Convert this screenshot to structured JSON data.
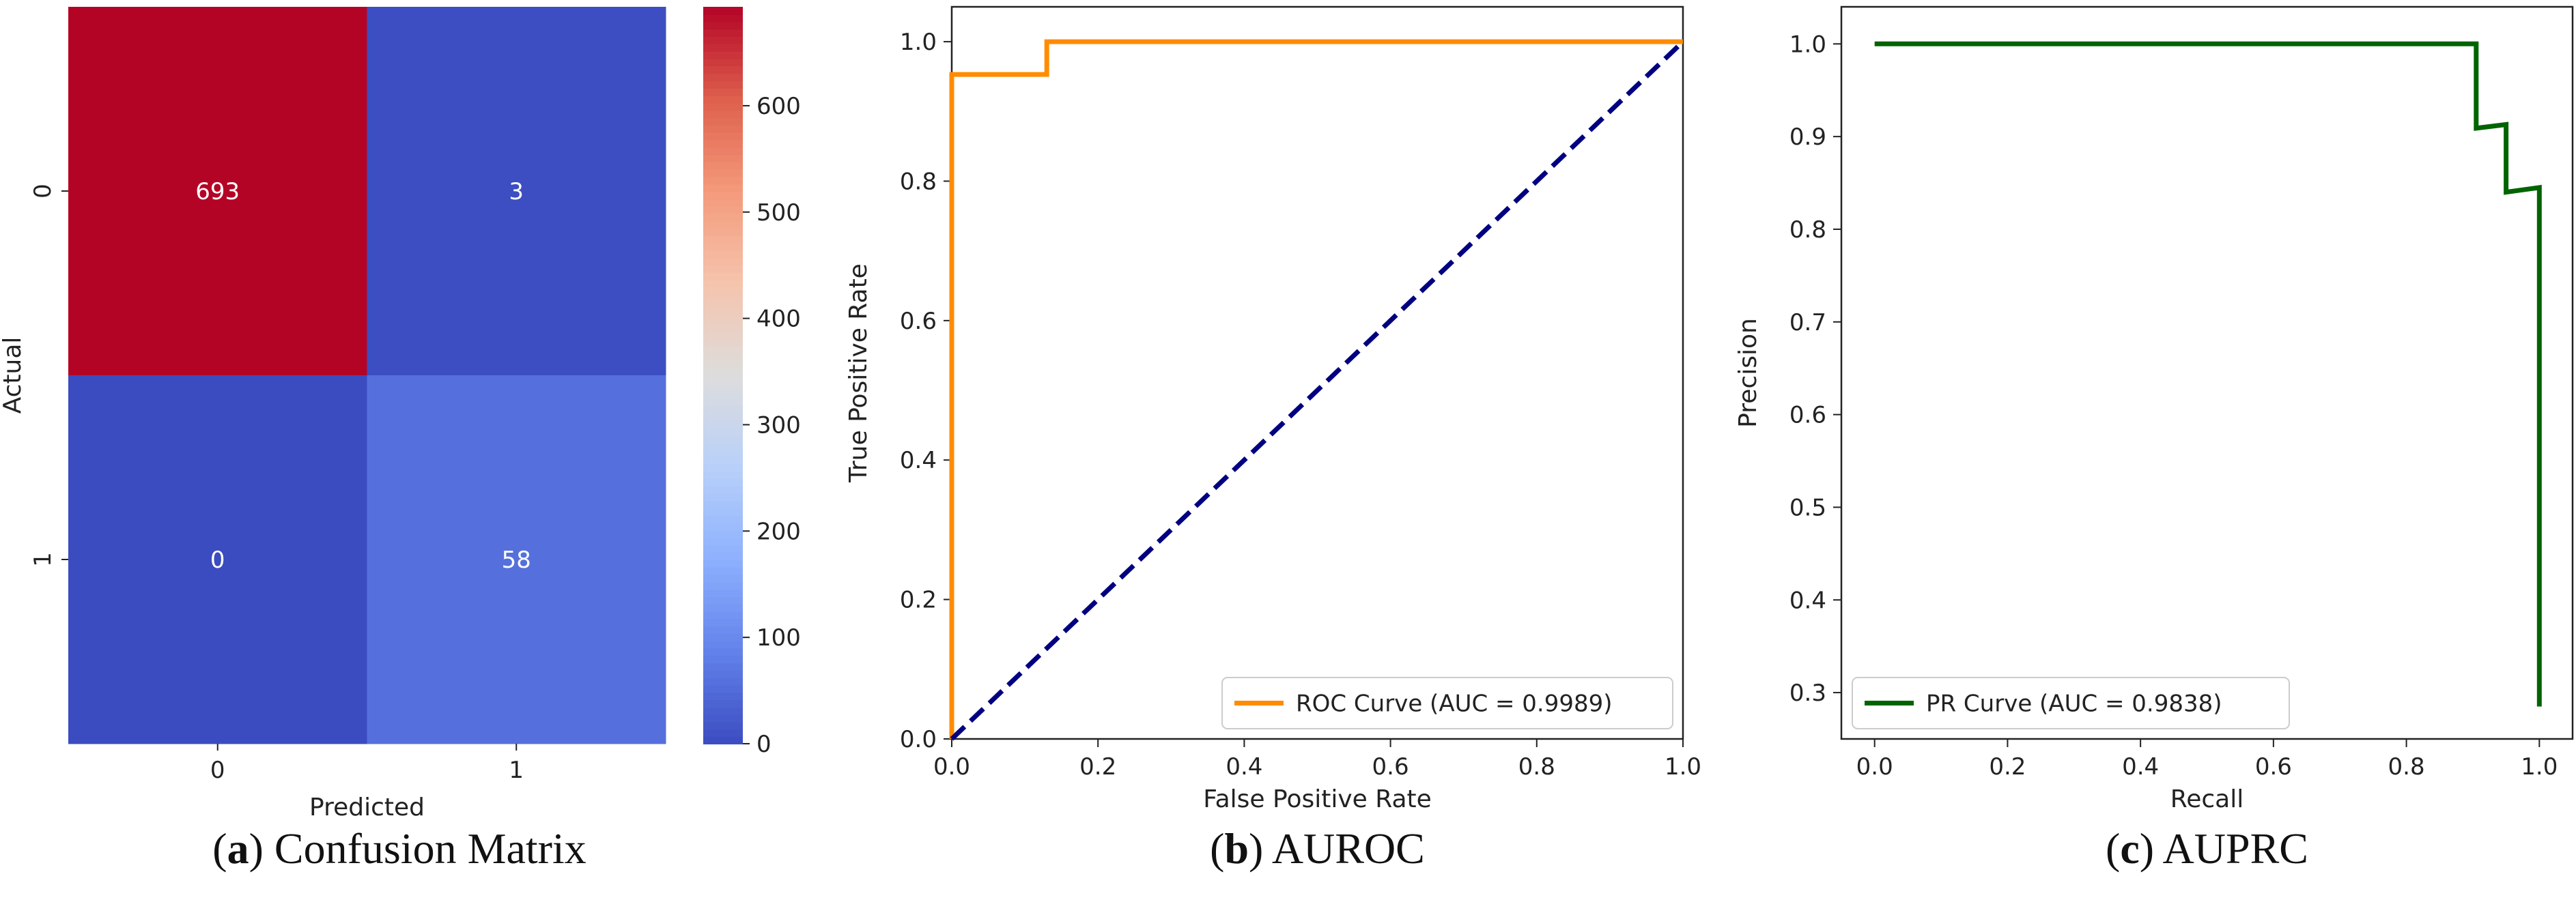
{
  "chart_data": [
    {
      "type": "heatmap",
      "caption": {
        "open": "(",
        "letter": "a",
        "close": ")",
        "text": " Confusion Matrix"
      },
      "x_categories": [
        "0",
        "1"
      ],
      "y_categories": [
        "0",
        "1"
      ],
      "values": [
        [
          693,
          3
        ],
        [
          0,
          58
        ]
      ],
      "xlabel": "Predicted",
      "ylabel": "Actual",
      "colormap": "coolwarm",
      "colorbar": {
        "min": 0,
        "max": 693,
        "ticks": [
          0,
          100,
          200,
          300,
          400,
          500,
          600
        ]
      },
      "colors": {
        "low": "#3b4cc0",
        "mid": "#dddddd",
        "high": "#b40426"
      }
    },
    {
      "type": "line",
      "caption": {
        "open": "(",
        "letter": "b",
        "close": ")",
        "text": " AUROC"
      },
      "xlabel": "False Positive Rate",
      "ylabel": "True Positive Rate",
      "xlim": [
        0.0,
        1.0
      ],
      "ylim": [
        0.0,
        1.05
      ],
      "xticks": [
        "0.0",
        "0.2",
        "0.4",
        "0.6",
        "0.8",
        "1.0"
      ],
      "yticks": [
        "0.0",
        "0.2",
        "0.4",
        "0.6",
        "0.8",
        "1.0"
      ],
      "legend_position": "lower-right",
      "series": [
        {
          "name": "ROC Curve (AUC = 0.9989)",
          "color": "#ff8c00",
          "style": "solid",
          "x": [
            0.0,
            0.0,
            0.13,
            0.13,
            1.0
          ],
          "y": [
            0.0,
            0.953,
            0.953,
            1.0,
            1.0
          ]
        },
        {
          "color": "#000080",
          "style": "dashed",
          "x": [
            0.0,
            1.0
          ],
          "y": [
            0.0,
            1.0
          ]
        }
      ]
    },
    {
      "type": "line",
      "caption": {
        "open": "(",
        "letter": "c",
        "close": ")",
        "text": " AUPRC"
      },
      "xlabel": "Recall",
      "ylabel": "Precision",
      "xlim": [
        -0.05,
        1.05
      ],
      "ylim": [
        0.25,
        1.04
      ],
      "xticks": [
        "0.0",
        "0.2",
        "0.4",
        "0.6",
        "0.8",
        "1.0"
      ],
      "yticks": [
        "0.3",
        "0.4",
        "0.5",
        "0.6",
        "0.7",
        "0.8",
        "0.9",
        "1.0"
      ],
      "legend_position": "lower-left",
      "series": [
        {
          "name": "PR Curve (AUC = 0.9838)",
          "color": "#006400",
          "style": "solid",
          "x": [
            0.0,
            0.905,
            0.905,
            0.95,
            0.95,
            1.0,
            1.0
          ],
          "y": [
            1.0,
            1.0,
            0.909,
            0.913,
            0.84,
            0.845,
            0.285
          ]
        }
      ]
    }
  ]
}
